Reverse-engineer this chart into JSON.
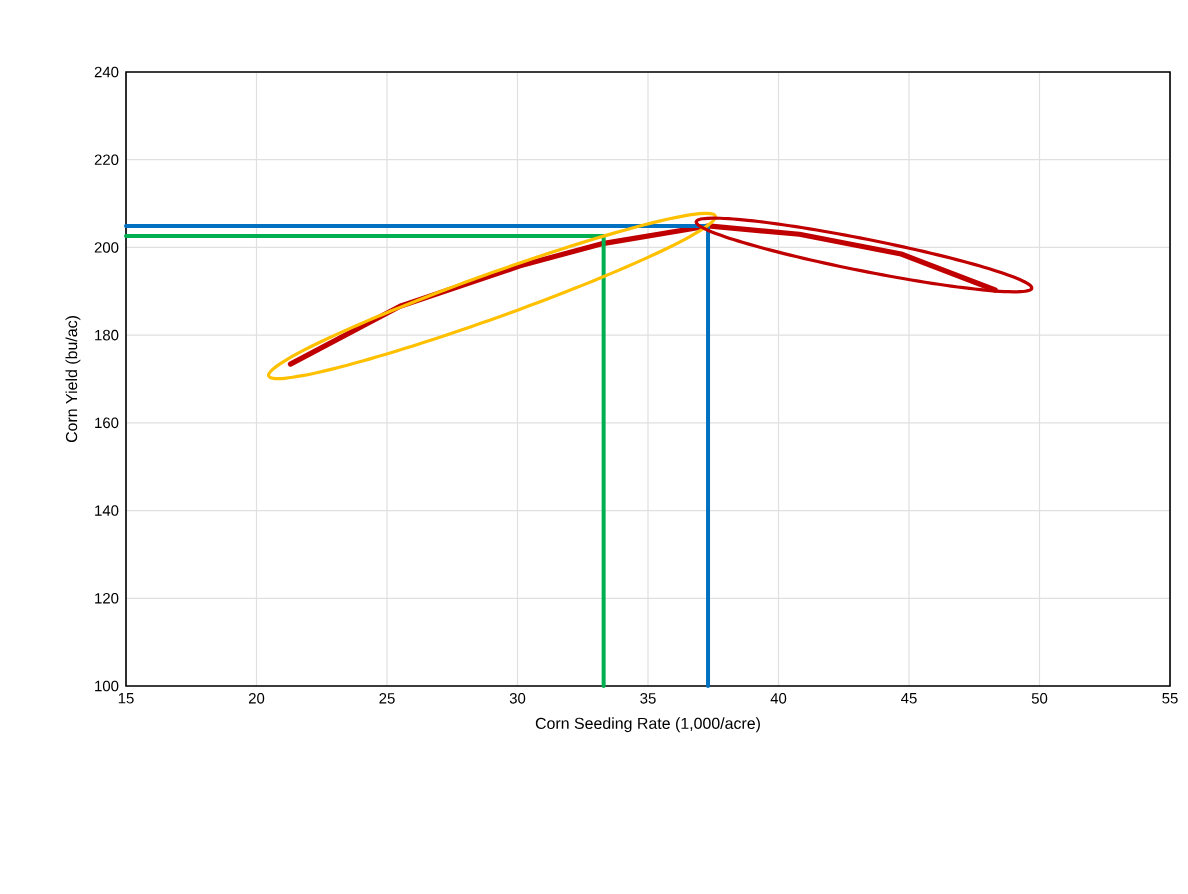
{
  "chart_data": {
    "type": "line",
    "xlabel": "Corn Seeding Rate (1,000/acre)",
    "ylabel": "Corn Yield (bu/ac)",
    "xlim": [
      15,
      55
    ],
    "xticks": [
      15,
      20,
      25,
      30,
      35,
      40,
      45,
      50,
      55
    ],
    "ylim": [
      100,
      240
    ],
    "yticks": [
      100,
      120,
      140,
      160,
      180,
      200,
      220,
      240
    ],
    "grid": true,
    "marker": "none",
    "line_style": "solid",
    "series": [
      {
        "color": "#c00000",
        "x": [
          21.3,
          25.5,
          30.1,
          33.2,
          37.3,
          40.8,
          44.7,
          48.3
        ],
        "values": [
          173.4,
          186.6,
          195.8,
          200.8,
          204.9,
          203,
          198.5,
          190.3
        ]
      },
      {
        "color": "#00b050",
        "x": [
          15,
          33.3,
          33.3
        ],
        "values": [
          202.6,
          202.6,
          100
        ]
      },
      {
        "color": "#0070c0",
        "x": [
          15,
          37.3,
          37.3
        ],
        "values": [
          204.9,
          204.9,
          100
        ]
      }
    ]
  }
}
